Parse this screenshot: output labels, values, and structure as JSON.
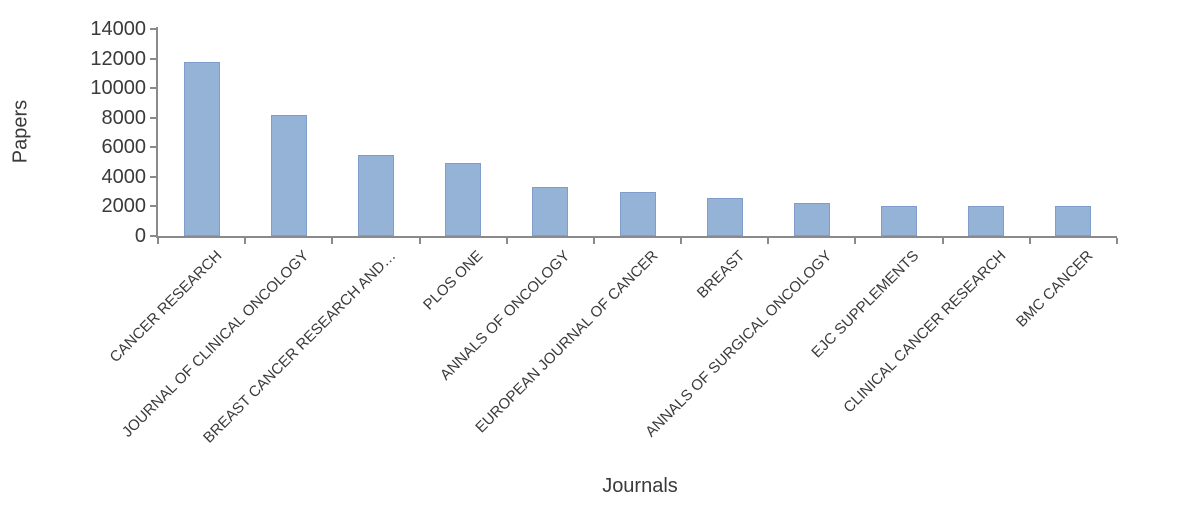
{
  "chart_data": {
    "type": "bar",
    "title": "",
    "xlabel": "Journals",
    "ylabel": "Papers",
    "categories": [
      "CANCER RESEARCH",
      "JOURNAL OF CLINICAL ONCOLOGY",
      "BREAST CANCER RESEARCH AND…",
      "PLOS ONE",
      "ANNALS OF ONCOLOGY",
      "EUROPEAN JOURNAL OF CANCER",
      "BREAST",
      "ANNALS OF SURGICAL ONCOLOGY",
      "EJC SUPPLEMENTS",
      "CLINICAL CANCER RESEARCH",
      "BMC CANCER"
    ],
    "values": [
      11800,
      8200,
      5500,
      4950,
      3300,
      2950,
      2600,
      2250,
      2050,
      2050,
      2050
    ],
    "ylim": [
      0,
      14000
    ],
    "yticks": [
      0,
      2000,
      4000,
      6000,
      8000,
      10000,
      12000,
      14000
    ],
    "grid": false,
    "legend": null,
    "bar_color": "#95b3d7",
    "bar_border_color": "#7f9ccb",
    "axis_color": "#8a8a8a",
    "text_color": "#3a3a3a"
  }
}
